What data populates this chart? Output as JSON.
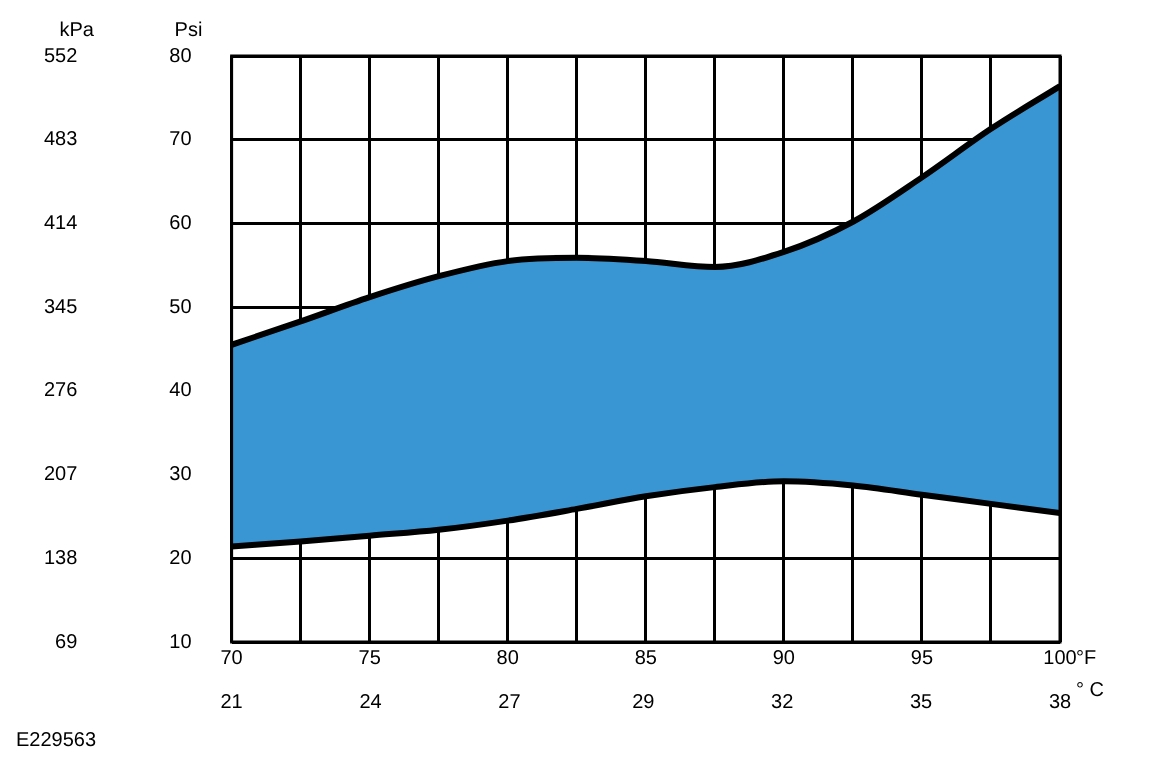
{
  "chart_data": {
    "type": "line",
    "x": [
      70,
      72.5,
      75,
      77.5,
      80,
      82.5,
      85,
      87.5,
      90,
      92.5,
      95,
      97.5,
      100
    ],
    "series": [
      {
        "color": "#000000",
        "values": [
          21.4,
          22.0,
          22.7,
          23.4,
          24.5,
          25.9,
          27.4,
          28.5,
          29.2,
          28.7,
          27.6,
          26.5,
          25.4
        ]
      },
      {
        "type": "area",
        "color": "#3a96d3",
        "values": [
          45.5,
          48.3,
          51.2,
          53.7,
          55.5,
          55.9,
          55.5,
          54.8,
          56.6,
          60.2,
          65.5,
          71.3,
          76.4
        ]
      }
    ],
    "xlim": [
      70,
      100
    ],
    "xticks": [
      70,
      {
        "value": 72.5,
        "label": null
      },
      75,
      {
        "value": 77.5,
        "label": null
      },
      80,
      {
        "value": 82.5,
        "label": null
      },
      85,
      {
        "value": 87.5,
        "label": null
      },
      90,
      {
        "value": 92.5,
        "label": null
      },
      95,
      {
        "value": 97.5,
        "label": null
      },
      100
    ],
    "x2lim": [
      21.1,
      37.8
    ],
    "x2ticks": [
      {
        "value": 21.1,
        "label": "21"
      },
      {
        "value": 23.9,
        "label": "24"
      },
      {
        "value": 26.7,
        "label": "27"
      },
      {
        "value": 29.4,
        "label": "29"
      },
      {
        "value": 32.2,
        "label": "32"
      },
      {
        "value": 35,
        "label": "35"
      },
      {
        "value": 37.8,
        "label": "38"
      }
    ],
    "xlabel": "°F",
    "x2label": "° C",
    "ylim": [
      10,
      80
    ],
    "yticks": [
      10,
      20,
      30,
      40,
      50,
      60,
      70,
      80
    ],
    "ylabel": "Psi",
    "y2lim": [
      69,
      552
    ],
    "y2ticks": [
      69,
      138,
      207,
      276,
      345,
      414,
      483,
      552
    ],
    "y2label": "kPa",
    "grid": true,
    "legend": false,
    "annotations": [
      "E229563"
    ]
  }
}
